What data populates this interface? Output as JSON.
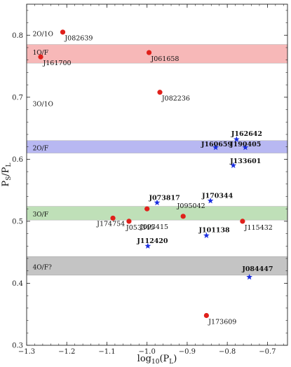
{
  "chart_data": {
    "type": "scatter",
    "xlabel": {
      "base": "log",
      "sub": "10",
      "rest": "(P",
      "sub2": "L",
      "end": ")"
    },
    "ylabel": {
      "base": "P",
      "sub": "S",
      "mid": "/P",
      "sub2": "L"
    },
    "xlim": [
      -1.3,
      -0.65
    ],
    "ylim": [
      0.3,
      0.85
    ],
    "xticks": [
      -1.3,
      -1.2,
      -1.1,
      -1.0,
      -0.9,
      -0.8,
      -0.7
    ],
    "xtick_labels": [
      "−1.3",
      "−1.2",
      "−1.1",
      "−1.0",
      "−0.9",
      "−0.8",
      "−0.7"
    ],
    "yticks": [
      0.3,
      0.4,
      0.5,
      0.6,
      0.7,
      0.8
    ],
    "ytick_labels": [
      "0.3",
      "0.4",
      "0.5",
      "0.6",
      "0.7",
      "0.8"
    ],
    "bands": [
      {
        "label": "1O/F",
        "y0": 0.755,
        "y1": 0.785,
        "color": "#f7b8b8"
      },
      {
        "label": "2O/F",
        "y0": 0.61,
        "y1": 0.63,
        "color": "#b8b8f2"
      },
      {
        "label": "3O/F",
        "y0": 0.502,
        "y1": 0.524,
        "color": "#bfe0b8"
      },
      {
        "label": "4O/F?",
        "y0": 0.413,
        "y1": 0.443,
        "color": "#c4c4c4"
      }
    ],
    "region_labels": [
      {
        "text": "2O/1O",
        "x": -1.285,
        "y": 0.802
      },
      {
        "text": "1O/F",
        "x": -1.285,
        "y": 0.772
      },
      {
        "text": "3O/1O",
        "x": -1.285,
        "y": 0.689
      },
      {
        "text": "2O/F",
        "x": -1.285,
        "y": 0.618
      },
      {
        "text": "3O/F",
        "x": -1.285,
        "y": 0.511
      },
      {
        "text": "4O/F?",
        "x": -1.285,
        "y": 0.426
      }
    ],
    "series": [
      {
        "marker": "circle",
        "color": "#e0201b",
        "points": [
          {
            "name": "J082639",
            "x": -1.21,
            "y": 0.805,
            "lx": -1.205,
            "ly": 0.795
          },
          {
            "name": "J161700",
            "x": -1.265,
            "y": 0.765,
            "lx": -1.259,
            "ly": 0.755
          },
          {
            "name": "J061658",
            "x": -0.995,
            "y": 0.772,
            "lx": -0.99,
            "ly": 0.762
          },
          {
            "name": "J082236",
            "x": -0.968,
            "y": 0.708,
            "lx": -0.963,
            "ly": 0.698
          },
          {
            "name": "J093415",
            "x": -1.0,
            "y": 0.52,
            "lx": -1.017,
            "ly": 0.491
          },
          {
            "name": "J095042",
            "x": -0.91,
            "y": 0.508,
            "lx": -0.925,
            "ly": 0.525
          },
          {
            "name": "J174754",
            "x": -1.085,
            "y": 0.505,
            "lx": -1.125,
            "ly": 0.496
          },
          {
            "name": "J053345",
            "x": -1.045,
            "y": 0.5,
            "lx": -1.052,
            "ly": 0.49
          },
          {
            "name": "J115432",
            "x": -0.762,
            "y": 0.5,
            "lx": -0.757,
            "ly": 0.49
          },
          {
            "name": "J173609",
            "x": -0.852,
            "y": 0.348,
            "lx": -0.847,
            "ly": 0.338
          }
        ]
      },
      {
        "marker": "star",
        "color": "#1a2ee0",
        "points": [
          {
            "name": "J162642",
            "x": -0.777,
            "y": 0.632,
            "lx": -0.79,
            "ly": 0.641,
            "bold": true
          },
          {
            "name": "J160659",
            "x": -0.829,
            "y": 0.619,
            "lx": -0.865,
            "ly": 0.624,
            "bold": true
          },
          {
            "name": "J190405",
            "x": -0.755,
            "y": 0.619,
            "lx": -0.793,
            "ly": 0.624,
            "bold": true
          },
          {
            "name": "J133601",
            "x": -0.785,
            "y": 0.59,
            "lx": -0.793,
            "ly": 0.597,
            "bold": true
          },
          {
            "name": "J073817",
            "x": -0.975,
            "y": 0.53,
            "lx": -0.995,
            "ly": 0.538,
            "bold": true
          },
          {
            "name": "J170344",
            "x": -0.842,
            "y": 0.533,
            "lx": -0.863,
            "ly": 0.541,
            "bold": true
          },
          {
            "name": "J101138",
            "x": -0.852,
            "y": 0.477,
            "lx": -0.871,
            "ly": 0.486,
            "bold": true
          },
          {
            "name": "J112420",
            "x": -0.998,
            "y": 0.46,
            "lx": -1.025,
            "ly": 0.468,
            "bold": true
          },
          {
            "name": "J084447",
            "x": -0.745,
            "y": 0.41,
            "lx": -0.763,
            "ly": 0.423,
            "bold": true
          }
        ]
      }
    ]
  }
}
